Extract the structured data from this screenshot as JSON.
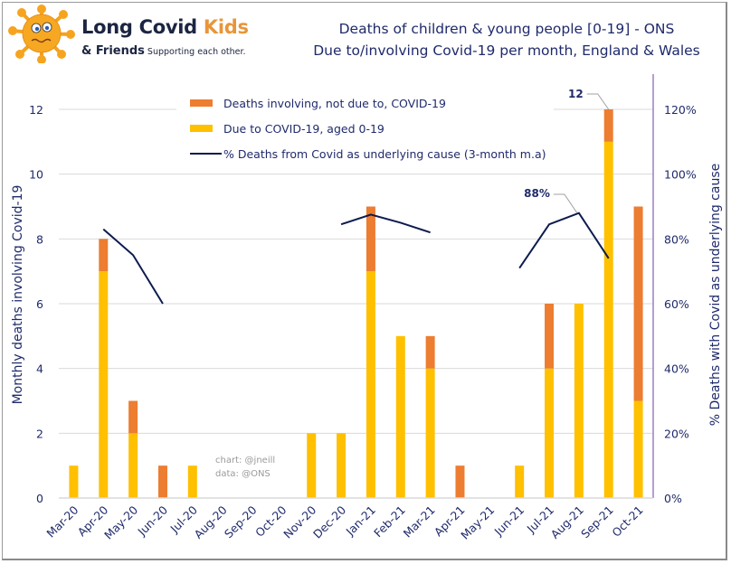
{
  "logo": {
    "name_main": "Long Covid ",
    "name_accent": "Kids",
    "sub_bold": "& Friends",
    "sub_small": " Supporting each other."
  },
  "title": {
    "line1": "Deaths of children & young people [0-19] - ONS",
    "line2": "Due to/involving Covid-19 per month, England & Wales"
  },
  "colors": {
    "due": "#ffc000",
    "involving": "#ed7d31",
    "line": "#0d1b4f",
    "text": "#1f2a6b",
    "grid": "#d9d9d9",
    "right_axis": "#9b7fc0"
  },
  "credits": [
    "chart: @jneill",
    "data: @ONS"
  ],
  "chart_data": {
    "type": "bar",
    "stacked": true,
    "title": "Deaths of children & young people [0-19] - ONS / Due to/involving Covid-19 per month, England & Wales",
    "categories": [
      "Mar-20",
      "Apr-20",
      "May-20",
      "Jun-20",
      "Jul-20",
      "Aug-20",
      "Sep-20",
      "Oct-20",
      "Nov-20",
      "Dec-20",
      "Jan-21",
      "Feb-21",
      "Mar-21",
      "Apr-21",
      "May-21",
      "Jun-21",
      "Jul-21",
      "Aug-21",
      "Sep-21",
      "Oct-21"
    ],
    "series": [
      {
        "name": "Due to COVID-19, aged 0-19",
        "type": "bar",
        "axis": "left",
        "values": [
          1,
          7,
          2,
          0,
          1,
          0,
          0,
          0,
          2,
          2,
          7,
          5,
          4,
          0,
          0,
          1,
          4,
          6,
          11,
          3
        ]
      },
      {
        "name": "Deaths involving, not due to, COVID-19",
        "type": "bar",
        "axis": "left",
        "values": [
          0,
          1,
          1,
          1,
          0,
          0,
          0,
          0,
          0,
          0,
          2,
          0,
          1,
          1,
          0,
          0,
          2,
          0,
          1,
          6
        ]
      },
      {
        "name": "% Deaths from Covid as underlying cause (3-month m.a)",
        "type": "line",
        "axis": "right",
        "values": [
          null,
          83,
          75,
          60,
          null,
          null,
          null,
          null,
          null,
          84.5,
          87.5,
          85,
          82,
          null,
          null,
          71,
          84.5,
          88,
          74,
          null
        ]
      }
    ],
    "legend": [
      {
        "label": "Deaths involving, not due to, COVID-19",
        "kind": "bar",
        "series": 1
      },
      {
        "label": "Due to COVID-19, aged 0-19",
        "kind": "bar",
        "series": 0
      },
      {
        "label": "% Deaths from Covid as underlying cause (3-month m.a)",
        "kind": "line",
        "series": 2
      }
    ],
    "legend_position": "top-center",
    "ylabel": "Monthly deaths involving Covid-19",
    "ylim": [
      0,
      12
    ],
    "yticks": [
      "0",
      "2",
      "4",
      "6",
      "8",
      "10",
      "12"
    ],
    "y2label": "% Deaths with Covid as underlying cause",
    "y2lim": [
      0,
      120
    ],
    "y2ticks": [
      "0%",
      "20%",
      "40%",
      "60%",
      "80%",
      "100%",
      "120%"
    ],
    "xlabel": "",
    "grid": true,
    "annotations": [
      {
        "text": "12",
        "category": "Sep-21",
        "series": "total"
      },
      {
        "text": "88%",
        "category": "Aug-21",
        "series": 2
      }
    ]
  }
}
